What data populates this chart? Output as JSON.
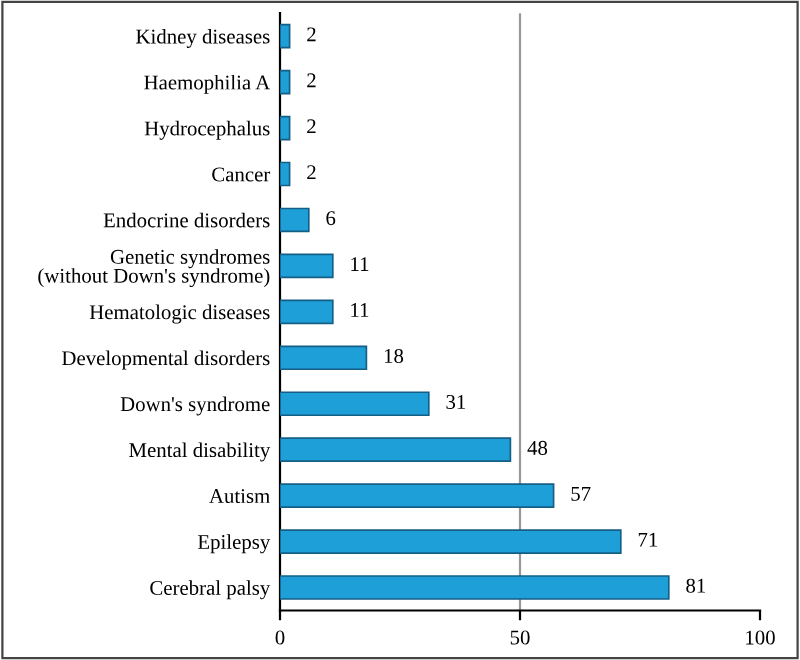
{
  "chart_data": {
    "type": "bar",
    "orientation": "horizontal",
    "categories": [
      "Kidney diseases",
      "Haemophilia A",
      "Hydrocephalus",
      "Cancer",
      "Endocrine disorders",
      "Genetic syndromes\n(without Down's syndrome)",
      "Hematologic diseases",
      "Developmental disorders",
      "Down's syndrome",
      "Mental disability",
      "Autism",
      "Epilepsy",
      "Cerebral palsy"
    ],
    "values": [
      2,
      2,
      2,
      2,
      6,
      11,
      11,
      18,
      31,
      48,
      57,
      71,
      81
    ],
    "color": "#1e9fd8",
    "data_labels": true,
    "xlim": [
      0,
      100
    ],
    "xticks": [
      0,
      50,
      100
    ],
    "grid": "x"
  }
}
